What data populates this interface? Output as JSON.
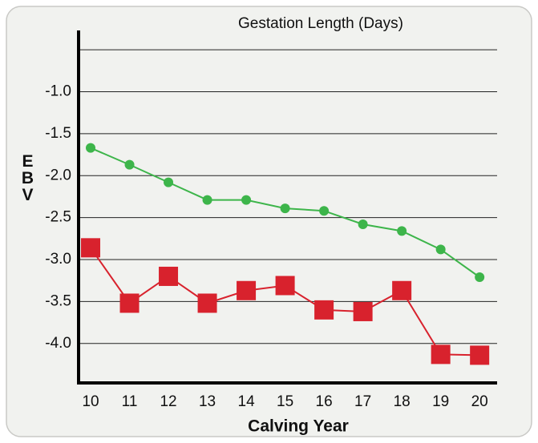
{
  "chart_data": {
    "type": "line",
    "title": "Gestation Length (Days)",
    "xlabel": "Calving Year",
    "ylabel": "EBV",
    "x": [
      10,
      11,
      12,
      13,
      14,
      15,
      16,
      17,
      18,
      19,
      20
    ],
    "series": [
      {
        "color": "#3db54a",
        "marker": "circle",
        "values": [
          -1.67,
          -1.87,
          -2.08,
          -2.29,
          -2.29,
          -2.39,
          -2.42,
          -2.58,
          -2.66,
          -2.88,
          -3.21
        ]
      },
      {
        "color": "#d8222d",
        "marker": "square",
        "values": [
          -2.86,
          -3.52,
          -3.2,
          -3.52,
          -3.37,
          -3.31,
          -3.6,
          -3.62,
          -3.37,
          -4.13,
          -4.14
        ]
      }
    ],
    "xlim": [
      9.67,
      20.45
    ],
    "ylim": [
      -4.47,
      -0.27
    ],
    "xticks": [
      10,
      11,
      12,
      13,
      14,
      15,
      16,
      17,
      18,
      19,
      20
    ],
    "yticks": [
      {
        "value": -1,
        "label": "-1.0"
      },
      {
        "value": -1.5,
        "label": "-1.5"
      },
      {
        "value": -2,
        "label": "-2.0"
      },
      {
        "value": -2.5,
        "label": "-2.5"
      },
      {
        "value": -3,
        "label": "-3.0"
      },
      {
        "value": -3.5,
        "label": "-3.5"
      },
      {
        "value": -4,
        "label": "-4.0"
      }
    ],
    "ygrid": [
      -0.5,
      -1,
      -1.5,
      -2,
      -2.5,
      -3,
      -3.5,
      -4
    ],
    "grid": true
  }
}
